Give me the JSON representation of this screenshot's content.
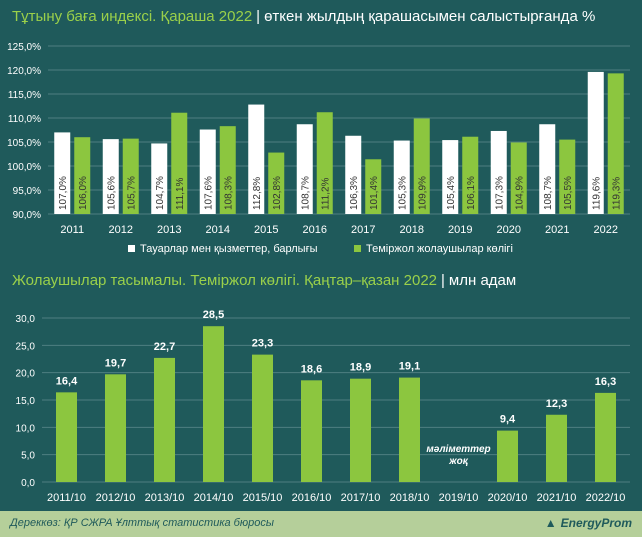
{
  "chart1": {
    "title": "Тұтыну баға индексі. Қараша 2022",
    "subtitle": "өткен жылдың қарашасымен салыстырғанда %",
    "chart_data": {
      "type": "bar",
      "categories": [
        "2011",
        "2012",
        "2013",
        "2014",
        "2015",
        "2016",
        "2017",
        "2018",
        "2019",
        "2020",
        "2021",
        "2022"
      ],
      "series": [
        {
          "name": "Тауарлар мен қызметтер, барлығы",
          "color": "#ffffff",
          "values": [
            107.0,
            105.6,
            104.7,
            107.6,
            112.8,
            108.7,
            106.3,
            105.3,
            105.4,
            107.3,
            108.7,
            119.6
          ],
          "labels": [
            "107,0%",
            "105,6%",
            "104,7%",
            "107,6%",
            "112,8%",
            "108,7%",
            "106,3%",
            "105,3%",
            "105,4%",
            "107,3%",
            "108,7%",
            "119,6%"
          ]
        },
        {
          "name": "Теміржол жолаушылар көлігі",
          "color": "#8cc63f",
          "values": [
            106.0,
            105.7,
            111.1,
            108.3,
            102.8,
            111.2,
            101.4,
            109.9,
            106.1,
            104.9,
            105.5,
            119.3
          ],
          "labels": [
            "106,0%",
            "105,7%",
            "111,1%",
            "108,3%",
            "102,8%",
            "111,2%",
            "101,4%",
            "109,9%",
            "106,1%",
            "104,9%",
            "105,5%",
            "119,3%"
          ]
        }
      ],
      "ylim": [
        90,
        125
      ],
      "yticks": [
        90,
        95,
        100,
        105,
        110,
        115,
        120,
        125
      ],
      "ytick_labels": [
        "90,0%",
        "95,0%",
        "100,0%",
        "105,0%",
        "110,0%",
        "115,0%",
        "120,0%",
        "125,0%"
      ],
      "grid": true,
      "legend": "bottom"
    }
  },
  "chart2": {
    "title": "Жолаушылар тасымалы. Теміржол көлігі. Қаңтар–қазан 2022",
    "subtitle": "млн адам",
    "chart_data": {
      "type": "bar",
      "categories": [
        "2011/10",
        "2012/10",
        "2013/10",
        "2014/10",
        "2015/10",
        "2016/10",
        "2017/10",
        "2018/10",
        "2019/10",
        "2020/10",
        "2021/10",
        "2022/10"
      ],
      "values": [
        16.4,
        19.7,
        22.7,
        28.5,
        23.3,
        18.6,
        18.9,
        19.1,
        null,
        9.4,
        12.3,
        16.3
      ],
      "labels": [
        "16,4",
        "19,7",
        "22,7",
        "28,5",
        "23,3",
        "18,6",
        "18,9",
        "19,1",
        "мәліметтер жоқ",
        "9,4",
        "12,3",
        "16,3"
      ],
      "missing_label_lines": [
        "мәліметтер",
        "жоқ"
      ],
      "color": "#8cc63f",
      "ylim": [
        0,
        30
      ],
      "yticks": [
        0,
        5,
        10,
        15,
        20,
        25,
        30
      ],
      "ytick_labels": [
        "0,0",
        "5,0",
        "10,0",
        "15,0",
        "20,0",
        "25,0",
        "30,0"
      ],
      "grid": true
    }
  },
  "footer": {
    "source": "Дереккөз: ҚР СЖРА Ұлттық статистика бюросы",
    "brand": "EnergyProm"
  }
}
